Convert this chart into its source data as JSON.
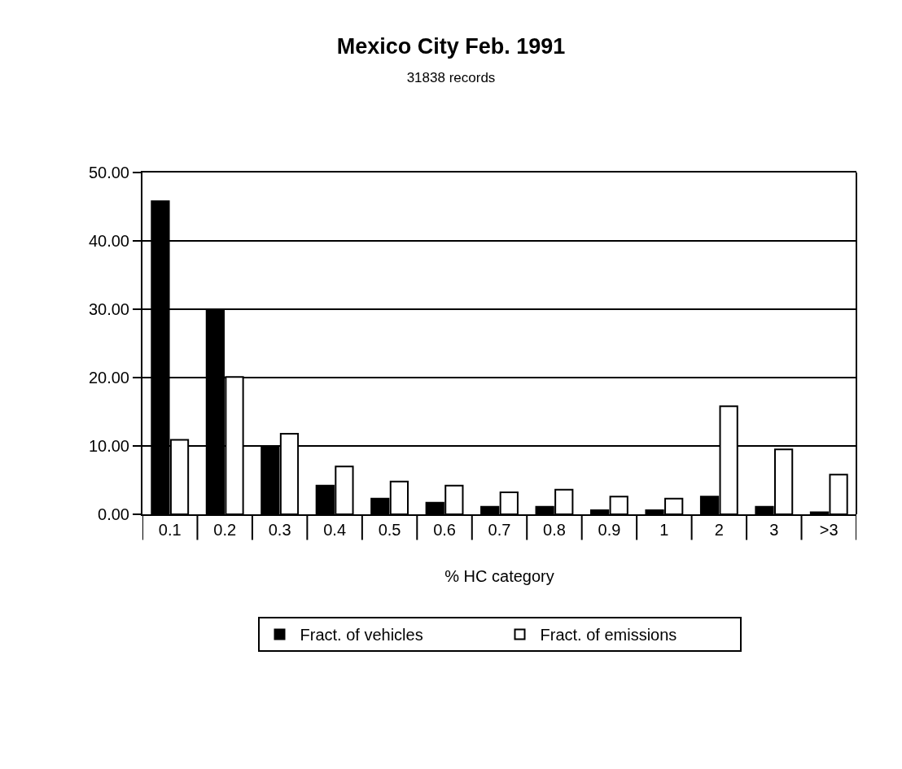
{
  "chart_data": {
    "type": "bar",
    "title": "Mexico City Feb. 1991",
    "subtitle": "31838 records",
    "xlabel": "% HC category",
    "categories": [
      "0.1",
      "0.2",
      "0.3",
      "0.4",
      "0.5",
      "0.6",
      "0.7",
      "0.8",
      "0.9",
      "1",
      "2",
      "3",
      ">3"
    ],
    "series": [
      {
        "name": "Fract. of vehicles",
        "color": "#000000",
        "values": [
          45.8,
          30.0,
          10.0,
          4.2,
          2.3,
          1.7,
          1.1,
          1.1,
          0.6,
          0.6,
          2.6,
          1.1,
          0.3
        ]
      },
      {
        "name": "Fract. of emissions",
        "color": "#ffffff",
        "values": [
          10.9,
          20.1,
          11.8,
          7.0,
          4.8,
          4.2,
          3.2,
          3.6,
          2.6,
          2.3,
          15.8,
          9.5,
          5.8
        ]
      }
    ],
    "ylim": [
      0,
      50
    ],
    "yticks": [
      {
        "value": 0,
        "label": "0.00"
      },
      {
        "value": 10,
        "label": "10.00"
      },
      {
        "value": 20,
        "label": "20.00"
      },
      {
        "value": 30,
        "label": "30.00"
      },
      {
        "value": 40,
        "label": "40.00"
      },
      {
        "value": 50,
        "label": "50.00"
      }
    ],
    "grid": "y",
    "legend": "bottom"
  }
}
